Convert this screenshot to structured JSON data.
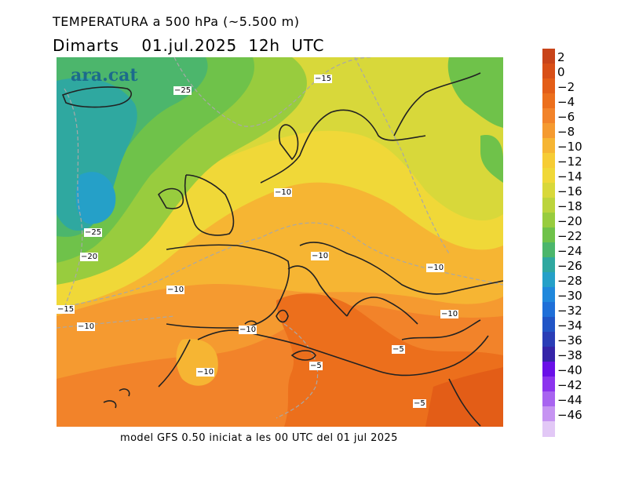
{
  "title_line1": "TEMPERATURA a 500 hPa (~5.500 m)",
  "title_line2": "Dimarts    01.jul.2025  12h  UTC",
  "brand": "ara.cat",
  "footer": "model GFS 0.50 iniciat a les 00 UTC del 01 jul 2025",
  "isotherm_labels": [
    {
      "text": "-25"
    },
    {
      "text": "-15"
    },
    {
      "text": "-10"
    },
    {
      "text": "-25"
    },
    {
      "text": "-20"
    },
    {
      "text": "-10"
    },
    {
      "text": "-10"
    },
    {
      "text": "-10"
    },
    {
      "text": "-15"
    },
    {
      "text": "-10"
    },
    {
      "text": "-10"
    },
    {
      "text": "-10"
    },
    {
      "text": "-5"
    },
    {
      "text": "-5"
    },
    {
      "text": "-10"
    },
    {
      "text": "-5"
    }
  ],
  "legend": {
    "labels": [
      "2",
      "0",
      "-2",
      "-4",
      "-6",
      "-8",
      "-10",
      "-12",
      "-14",
      "-16",
      "-18",
      "-20",
      "-22",
      "-24",
      "-26",
      "-28",
      "-30",
      "-32",
      "-34",
      "-36",
      "-38",
      "-40",
      "-42",
      "-44",
      "-46"
    ],
    "colors": [
      "#c8441a",
      "#d84f17",
      "#e35d17",
      "#ec6f1c",
      "#f2832a",
      "#f59a30",
      "#f6b533",
      "#f6cc35",
      "#f0d838",
      "#d8d83a",
      "#bcd43c",
      "#98cc3e",
      "#6fc24a",
      "#4cb66c",
      "#2fa8a0",
      "#25a0c8",
      "#2088dc",
      "#1f6fd8",
      "#2155c6",
      "#2a3db6",
      "#3524a8",
      "#6a10e8",
      "#8c34ee",
      "#a864f0",
      "#c694f2",
      "#e2c8f6"
    ]
  }
}
